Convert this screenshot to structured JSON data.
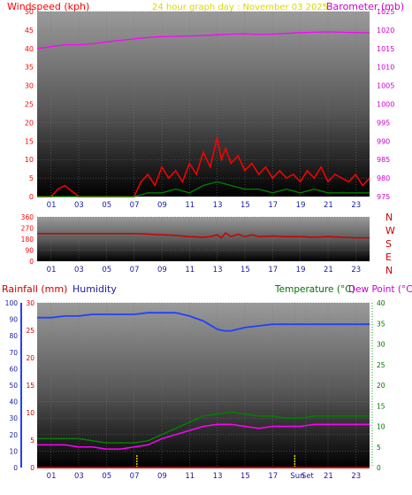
{
  "header": {
    "left_title": "Windspeed (kph)",
    "center_title": "24 hour graph day : November 03 2025",
    "right_title": "Barometer (mb)"
  },
  "lower_header": {
    "rainfall_label": "Rainfall (mm)",
    "humidity_label": "Humidity",
    "temperature_label": "Temperature (°C)",
    "dewpoint_label": "Dew Point (°C)"
  },
  "compass_labels": [
    "N",
    "W",
    "S",
    "E",
    "N"
  ],
  "sun_labels": {
    "sunrise": "Sun",
    "sunset": "Set"
  },
  "colors": {
    "wind": "#ff0000",
    "gust_green": "#008000",
    "wind_blue": "#0000cc",
    "barometer": "#ff00ff",
    "direction": "#cc0000",
    "humidity": "#2040ff",
    "temperature": "#008000",
    "dewpoint": "#ff00ff",
    "rain": "#cc0000",
    "sun_marker": "#cccc00",
    "axis_left_top": "#ff0000",
    "axis_right_top": "#cc00cc"
  },
  "chart_data": [
    {
      "type": "line",
      "panel": "wind-barometer",
      "x_ticks": [
        "01",
        "03",
        "05",
        "07",
        "09",
        "11",
        "13",
        "15",
        "17",
        "19",
        "21",
        "23"
      ],
      "xlim": [
        0,
        24
      ],
      "left_axis": {
        "label": "Windspeed (kph)",
        "range": [
          0,
          50
        ],
        "ticks": [
          0,
          5,
          10,
          15,
          20,
          25,
          30,
          35,
          40,
          45,
          50
        ]
      },
      "right_axis": {
        "label": "Barometer (mb)",
        "range": [
          975,
          1025
        ],
        "ticks": [
          975,
          980,
          985,
          990,
          995,
          1000,
          1005,
          1010,
          1015,
          1020,
          1025
        ]
      },
      "series": [
        {
          "name": "Windspeed (kph)",
          "axis": "left",
          "x": [
            0,
            1,
            1.5,
            2,
            3,
            4,
            5,
            6,
            7,
            7.5,
            8,
            8.5,
            9,
            9.5,
            10,
            10.5,
            11,
            11.5,
            12,
            12.5,
            13,
            13.3,
            13.6,
            14,
            14.5,
            15,
            15.5,
            16,
            16.5,
            17,
            17.5,
            18,
            18.5,
            19,
            19.5,
            20,
            20.5,
            21,
            21.5,
            22,
            22.5,
            23,
            23.5,
            24
          ],
          "values": [
            0,
            0,
            2,
            3,
            0,
            0,
            0,
            0,
            0,
            4,
            6,
            3,
            8,
            5,
            7,
            4,
            9,
            6,
            12,
            8,
            16,
            10,
            13,
            9,
            11,
            7,
            9,
            6,
            8,
            5,
            7,
            5,
            6,
            4,
            7,
            5,
            8,
            4,
            6,
            5,
            4,
            6,
            3,
            5
          ]
        },
        {
          "name": "Gust",
          "axis": "left",
          "x": [
            0,
            7,
            8,
            9,
            10,
            11,
            12,
            13,
            14,
            15,
            16,
            17,
            18,
            19,
            20,
            21,
            22,
            23,
            24
          ],
          "values": [
            0,
            0,
            1,
            1,
            2,
            1,
            3,
            4,
            3,
            2,
            2,
            1,
            2,
            1,
            2,
            1,
            1,
            1,
            1
          ]
        },
        {
          "name": "Barometer (mb)",
          "axis": "right",
          "x": [
            0,
            1,
            2,
            3,
            4,
            5,
            6,
            7,
            8,
            9,
            10,
            11,
            12,
            13,
            14,
            15,
            16,
            17,
            18,
            19,
            20,
            21,
            22,
            23,
            24
          ],
          "values": [
            1015,
            1015.5,
            1016,
            1016,
            1016.3,
            1016.8,
            1017.2,
            1017.6,
            1018,
            1018.2,
            1018.3,
            1018.4,
            1018.5,
            1018.7,
            1018.9,
            1019,
            1018.8,
            1018.9,
            1019.1,
            1019.3,
            1019.4,
            1019.5,
            1019.4,
            1019.3,
            1019.2
          ]
        }
      ]
    },
    {
      "type": "line",
      "panel": "wind-direction",
      "x_ticks": [
        "01",
        "03",
        "05",
        "07",
        "09",
        "11",
        "13",
        "15",
        "17",
        "19",
        "21",
        "23"
      ],
      "xlim": [
        0,
        24
      ],
      "left_axis": {
        "label": "",
        "range": [
          0,
          360
        ],
        "ticks": [
          0,
          90,
          180,
          270,
          360
        ]
      },
      "series": [
        {
          "name": "Direction",
          "axis": "left",
          "x": [
            0,
            1,
            2,
            3,
            4,
            5,
            6,
            7,
            8,
            9,
            10,
            11,
            12,
            12.5,
            13,
            13.3,
            13.6,
            14,
            14.5,
            15,
            15.5,
            16,
            17,
            18,
            19,
            20,
            21,
            22,
            23,
            24
          ],
          "values": [
            225,
            225,
            225,
            225,
            225,
            225,
            225,
            225,
            220,
            215,
            210,
            200,
            195,
            200,
            215,
            190,
            230,
            200,
            220,
            200,
            215,
            200,
            205,
            200,
            200,
            195,
            200,
            195,
            190,
            190
          ]
        }
      ]
    },
    {
      "type": "line",
      "panel": "temperature-humidity",
      "x_ticks": [
        "01",
        "03",
        "05",
        "07",
        "09",
        "11",
        "13",
        "15",
        "17",
        "Sun",
        "Set",
        "21",
        "23"
      ],
      "xlim": [
        0,
        24
      ],
      "left_axis_humidity": {
        "label": "Humidity",
        "range": [
          0,
          100
        ],
        "ticks": [
          0,
          10,
          20,
          30,
          40,
          50,
          60,
          70,
          80,
          90,
          100
        ]
      },
      "left_axis_rain": {
        "label": "Rainfall (mm)",
        "range": [
          0,
          30
        ],
        "ticks": [
          0,
          5,
          10,
          15,
          20,
          25,
          30
        ]
      },
      "right_axis": {
        "label": "Temperature (°C)",
        "range": [
          0,
          40
        ],
        "ticks": [
          0,
          5,
          10,
          15,
          20,
          25,
          30,
          35,
          40
        ]
      },
      "series": [
        {
          "name": "Humidity",
          "axis": "humidity",
          "x": [
            0,
            1,
            2,
            3,
            4,
            5,
            6,
            7,
            8,
            9,
            10,
            11,
            12,
            13,
            13.5,
            14,
            15,
            16,
            17,
            18,
            19,
            20,
            21,
            22,
            23,
            24
          ],
          "values": [
            91,
            91,
            92,
            92,
            93,
            93,
            93,
            93,
            94,
            94,
            94,
            92,
            89,
            84,
            83,
            83,
            85,
            86,
            87,
            87,
            87,
            87,
            87,
            87,
            87,
            87
          ]
        },
        {
          "name": "Temperature (°C)",
          "axis": "right",
          "x": [
            0,
            1,
            2,
            3,
            4,
            5,
            6,
            7,
            8,
            9,
            10,
            11,
            12,
            13,
            14,
            15,
            16,
            17,
            18,
            19,
            20,
            21,
            22,
            23,
            24
          ],
          "values": [
            7,
            7,
            7,
            7,
            6.5,
            6,
            6,
            6,
            6.5,
            8,
            9.5,
            11,
            12.5,
            13,
            13.5,
            13,
            12.5,
            12.5,
            12,
            12,
            12.5,
            12.5,
            12.5,
            12.5,
            12.5
          ]
        },
        {
          "name": "Dew Point (°C)",
          "axis": "right",
          "x": [
            0,
            1,
            2,
            3,
            4,
            5,
            6,
            7,
            8,
            9,
            10,
            11,
            12,
            13,
            14,
            15,
            16,
            17,
            18,
            19,
            20,
            21,
            22,
            23,
            24
          ],
          "values": [
            5.5,
            5.5,
            5.5,
            5,
            5,
            4.5,
            4.5,
            5,
            5.5,
            7,
            8,
            9,
            10,
            10.5,
            10.5,
            10,
            9.5,
            10,
            10,
            10,
            10.5,
            10.5,
            10.5,
            10.5,
            10.5
          ]
        },
        {
          "name": "Rainfall (mm)",
          "axis": "rain",
          "x": [
            0,
            24
          ],
          "values": [
            0,
            0
          ]
        }
      ],
      "sun_markers_hours": [
        7.2,
        18.6
      ]
    }
  ]
}
